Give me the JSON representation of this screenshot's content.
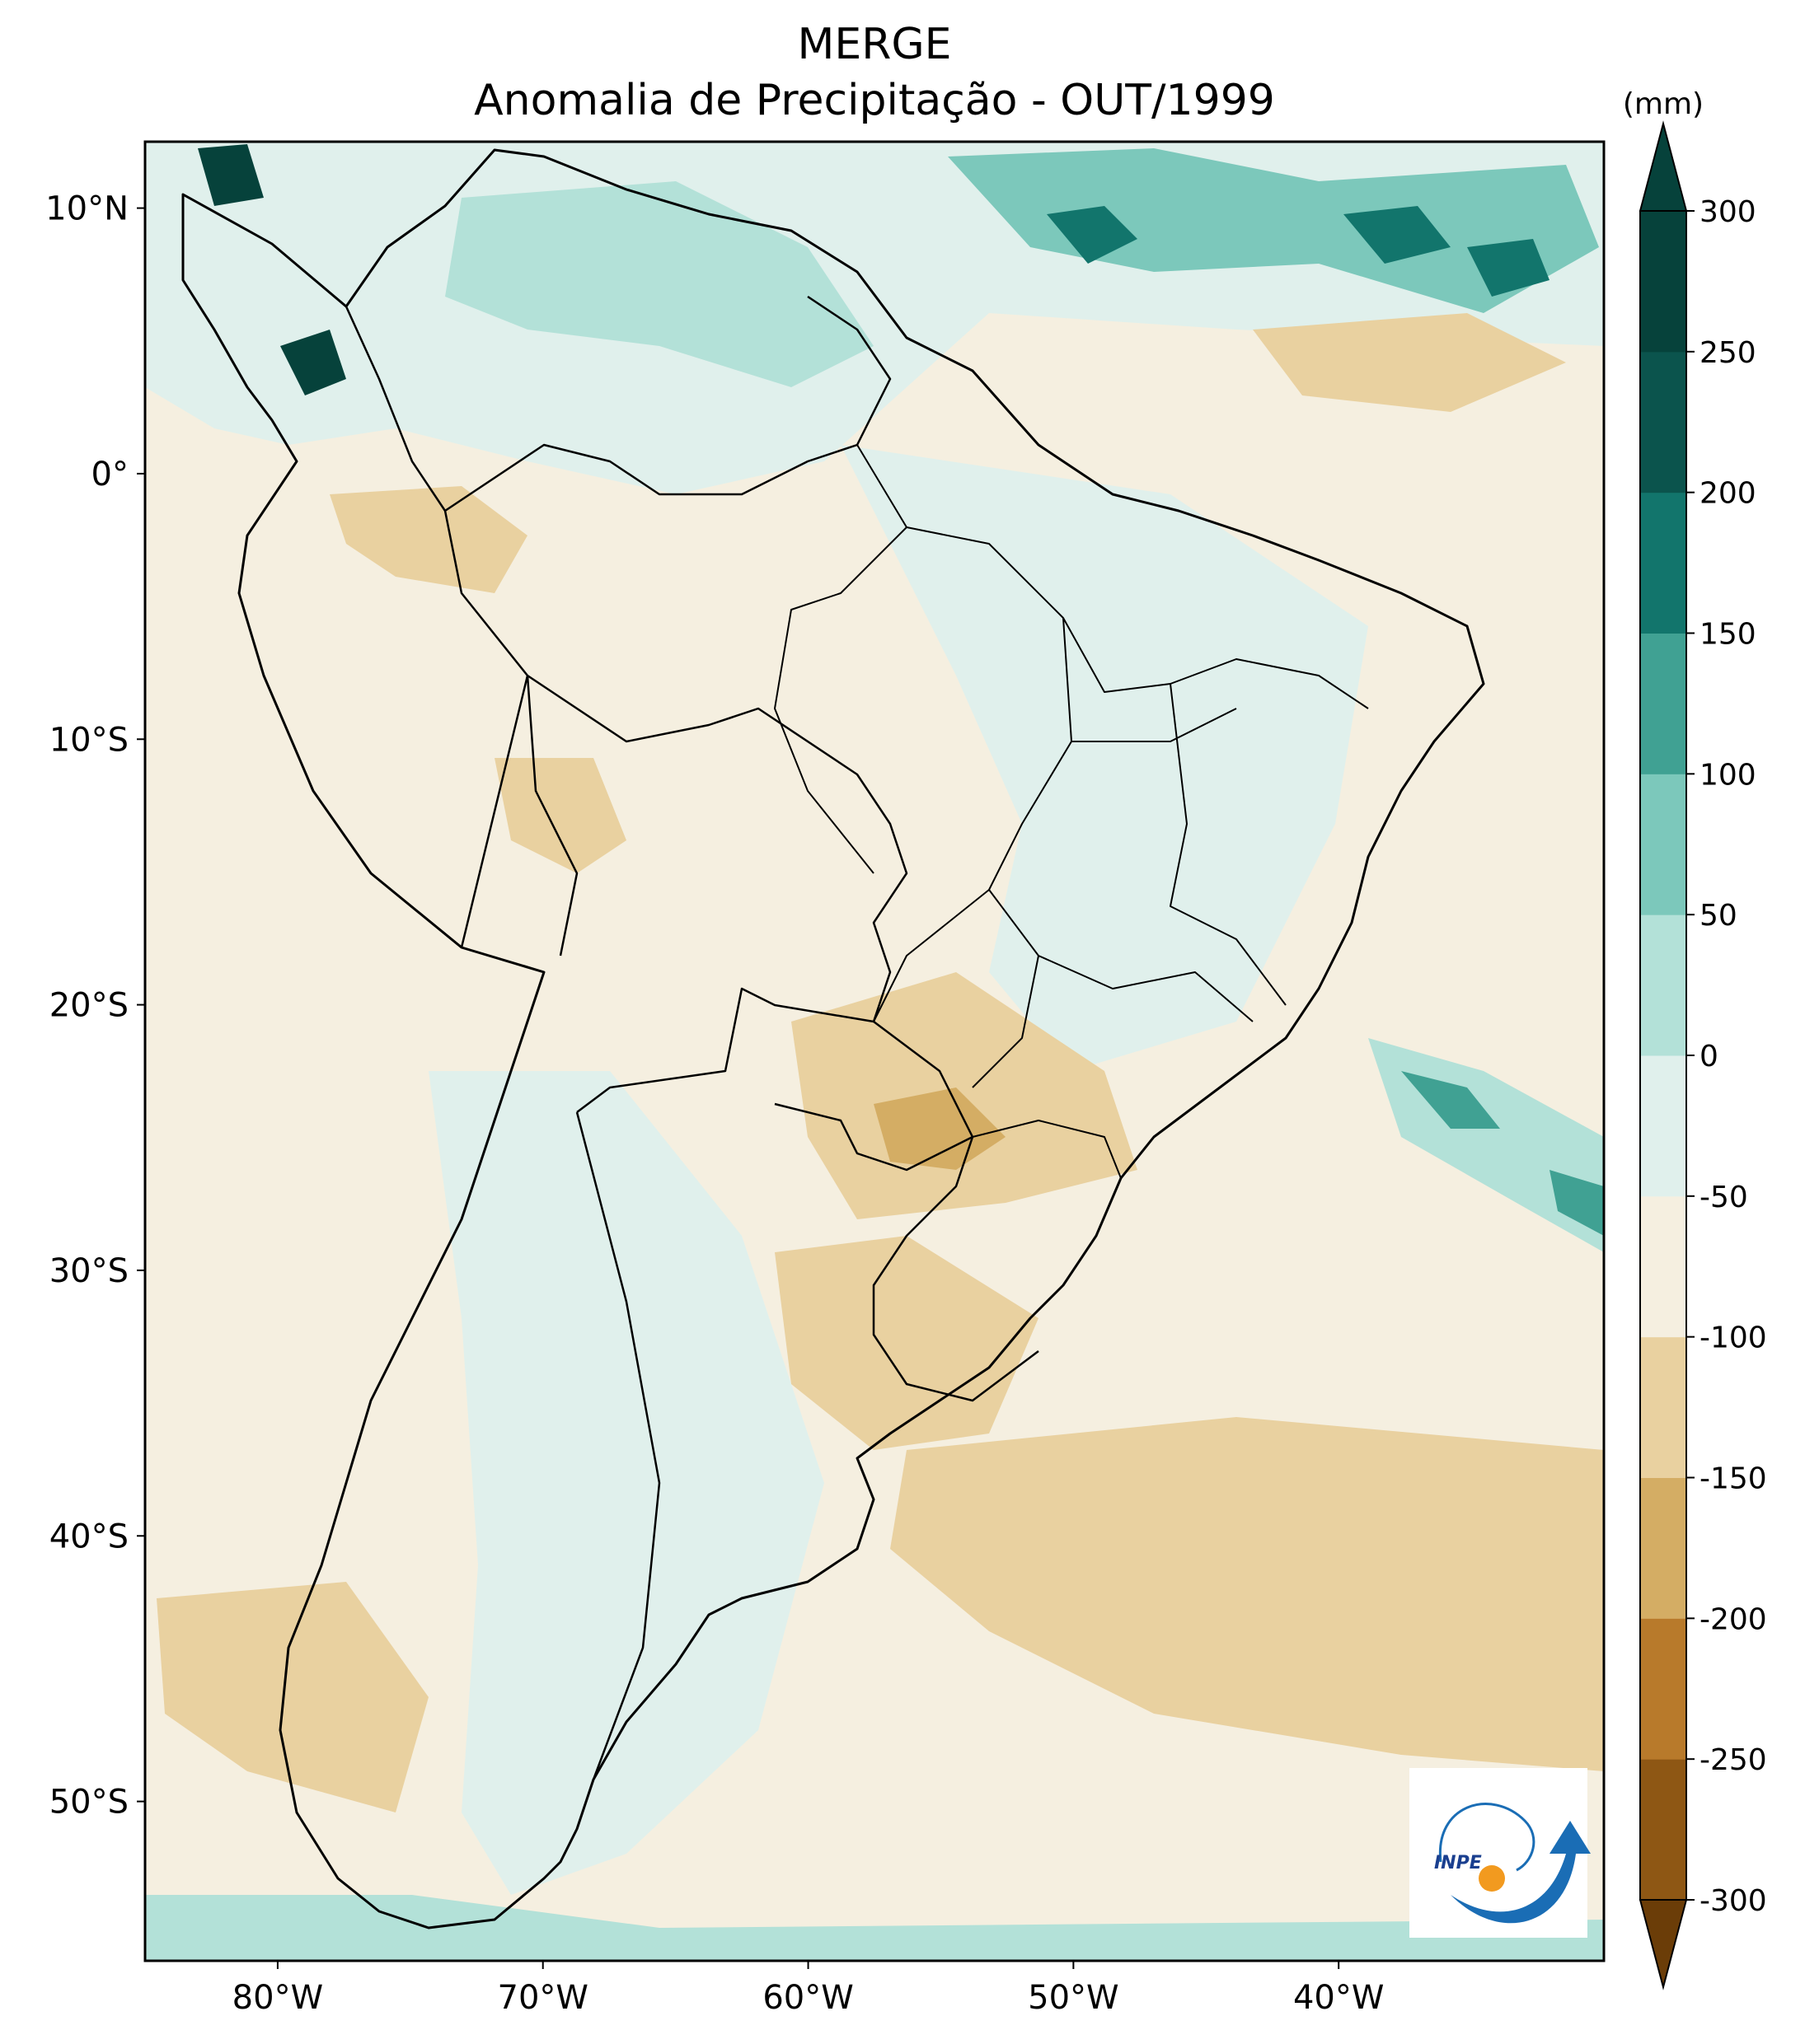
{
  "title": "MERGE",
  "subtitle": "Anomalia de Precipitação - OUT/1999",
  "map": {
    "region": "South America",
    "lon_range": [
      -85,
      -30
    ],
    "lat_range": [
      -56,
      12.5
    ],
    "lat_ticks": [
      {
        "value": 10,
        "label": "10°N"
      },
      {
        "value": 0,
        "label": "0°"
      },
      {
        "value": -10,
        "label": "10°S"
      },
      {
        "value": -20,
        "label": "20°S"
      },
      {
        "value": -30,
        "label": "30°S"
      },
      {
        "value": -40,
        "label": "40°S"
      },
      {
        "value": -50,
        "label": "50°S"
      }
    ],
    "lon_ticks": [
      {
        "value": -80,
        "label": "80°W"
      },
      {
        "value": -70,
        "label": "70°W"
      },
      {
        "value": -60,
        "label": "60°W"
      },
      {
        "value": -50,
        "label": "50°W"
      },
      {
        "value": -40,
        "label": "40°W"
      }
    ],
    "logo_text": "INPE"
  },
  "colorbar": {
    "unit": "(mm)",
    "extend": "both",
    "levels": [
      -300,
      -250,
      -200,
      -150,
      -100,
      -50,
      0,
      50,
      100,
      150,
      200,
      250,
      300
    ],
    "labels": [
      "300",
      "250",
      "200",
      "150",
      "100",
      "50",
      "0",
      "-50",
      "-100",
      "-150",
      "-200",
      "-250",
      "-300"
    ],
    "colors": [
      "#6b3d08",
      "#8e5714",
      "#b87a2b",
      "#d4ad64",
      "#e9d1a0",
      "#f5efe0",
      "#e0f0ec",
      "#b3e1d8",
      "#7cc8bb",
      "#40a193",
      "#12756c",
      "#0b544d",
      "#06423b"
    ]
  }
}
